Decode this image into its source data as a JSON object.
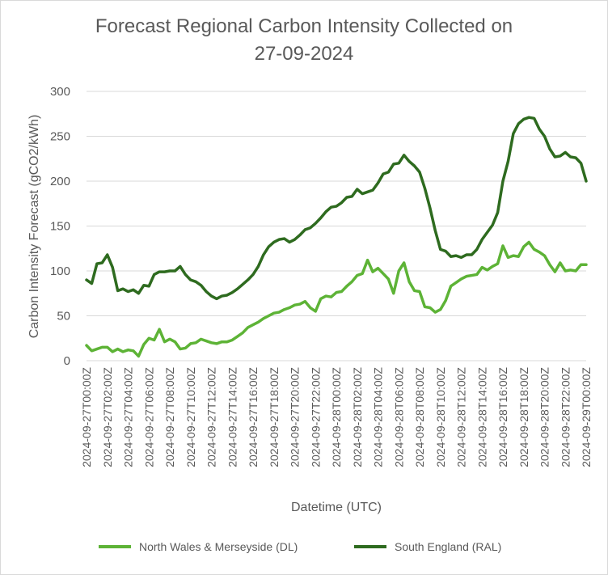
{
  "chart_data": {
    "type": "line",
    "title": "Forecast Regional Carbon Intensity Collected on 27-09-2024",
    "title_lines": [
      "Forecast Regional Carbon Intensity Collected on",
      "27-09-2024"
    ],
    "xlabel": "Datetime (UTC)",
    "ylabel": "Carbon Intensity Forecast (gCO2/kWh)",
    "ylim": [
      0,
      300
    ],
    "yticks": [
      0,
      50,
      100,
      150,
      200,
      250,
      300
    ],
    "gridlines": true,
    "legend_position": "bottom",
    "x_points": 97,
    "x_tick_labels": [
      "2024-09-27T00:00Z",
      "2024-09-27T02:00Z",
      "2024-09-27T04:00Z",
      "2024-09-27T06:00Z",
      "2024-09-27T08:00Z",
      "2024-09-27T10:00Z",
      "2024-09-27T12:00Z",
      "2024-09-27T14:00Z",
      "2024-09-27T16:00Z",
      "2024-09-27T18:00Z",
      "2024-09-27T20:00Z",
      "2024-09-27T22:00Z",
      "2024-09-28T00:00Z",
      "2024-09-28T02:00Z",
      "2024-09-28T04:00Z",
      "2024-09-28T06:00Z",
      "2024-09-28T08:00Z",
      "2024-09-28T10:00Z",
      "2024-09-28T12:00Z",
      "2024-09-28T14:00Z",
      "2024-09-28T16:00Z",
      "2024-09-28T18:00Z",
      "2024-09-28T20:00Z",
      "2024-09-28T22:00Z",
      "2024-09-29T00:00Z"
    ],
    "series": [
      {
        "name": "North Wales & Merseyside (DL)",
        "color": "#5db336",
        "values": [
          17,
          11,
          13,
          15,
          15,
          10,
          13,
          10,
          12,
          11,
          5,
          18,
          25,
          23,
          35,
          21,
          24,
          21,
          13,
          14,
          19,
          20,
          24,
          22,
          20,
          19,
          21,
          21,
          23,
          27,
          31,
          37,
          40,
          43,
          47,
          50,
          53,
          54,
          57,
          59,
          62,
          63,
          66,
          59,
          55,
          69,
          72,
          71,
          76,
          77,
          83,
          88,
          95,
          97,
          112,
          99,
          103,
          97,
          91,
          75,
          100,
          109,
          88,
          78,
          77,
          60,
          59,
          54,
          57,
          67,
          83,
          87,
          91,
          94,
          95,
          96,
          104,
          101,
          105,
          108,
          128,
          115,
          117,
          116,
          127,
          132,
          124,
          121,
          117,
          107,
          99,
          109,
          100,
          101,
          100,
          107,
          107
        ]
      },
      {
        "name": "South England (RAL)",
        "color": "#2e6b1f",
        "values": [
          90,
          86,
          108,
          109,
          118,
          104,
          78,
          80,
          77,
          79,
          75,
          84,
          83,
          96,
          99,
          99,
          100,
          100,
          105,
          96,
          90,
          88,
          84,
          77,
          72,
          69,
          72,
          73,
          76,
          80,
          85,
          90,
          96,
          105,
          118,
          127,
          132,
          135,
          136,
          132,
          135,
          140,
          146,
          148,
          153,
          159,
          166,
          171,
          172,
          176,
          182,
          183,
          191,
          186,
          188,
          190,
          198,
          208,
          210,
          219,
          220,
          229,
          222,
          217,
          210,
          192,
          170,
          145,
          124,
          122,
          116,
          117,
          115,
          118,
          118,
          124,
          135,
          143,
          151,
          165,
          200,
          222,
          253,
          264,
          269,
          271,
          270,
          258,
          250,
          236,
          227,
          228,
          232,
          227,
          226,
          220,
          200
        ]
      }
    ]
  }
}
